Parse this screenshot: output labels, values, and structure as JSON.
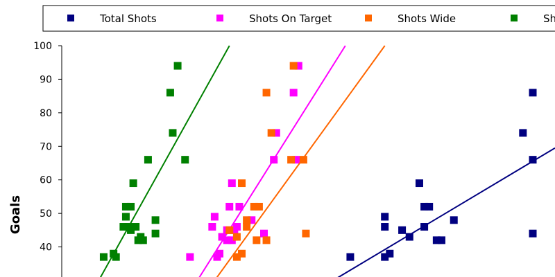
{
  "chart_data": {
    "type": "scatter",
    "ylabel": "Goals",
    "ylim": [
      30,
      100
    ],
    "yticks": [
      "40",
      "50",
      "60",
      "70",
      "80",
      "90",
      "100"
    ],
    "xlim": [
      0,
      200
    ],
    "legend_position": "top",
    "grid": false,
    "series": [
      {
        "name": "Total Shots",
        "color": "#000080",
        "points": [
          {
            "x": 117,
            "y": 37
          },
          {
            "x": 131,
            "y": 37
          },
          {
            "x": 133,
            "y": 38
          },
          {
            "x": 131,
            "y": 46
          },
          {
            "x": 131,
            "y": 49
          },
          {
            "x": 138,
            "y": 45
          },
          {
            "x": 141,
            "y": 43
          },
          {
            "x": 145,
            "y": 59
          },
          {
            "x": 147,
            "y": 52
          },
          {
            "x": 147,
            "y": 46
          },
          {
            "x": 149,
            "y": 52
          },
          {
            "x": 152,
            "y": 42
          },
          {
            "x": 154,
            "y": 42
          },
          {
            "x": 159,
            "y": 48
          },
          {
            "x": 187,
            "y": 74
          },
          {
            "x": 191,
            "y": 86
          },
          {
            "x": 191,
            "y": 66
          },
          {
            "x": 191,
            "y": 44
          }
        ],
        "trend": [
          {
            "x": 110,
            "y": 30
          },
          {
            "x": 200,
            "y": 69.5
          }
        ]
      },
      {
        "name": "Shots On Target",
        "color": "#ff00ff",
        "points": [
          {
            "x": 52,
            "y": 37
          },
          {
            "x": 61,
            "y": 46
          },
          {
            "x": 62,
            "y": 49
          },
          {
            "x": 63,
            "y": 37
          },
          {
            "x": 64,
            "y": 38
          },
          {
            "x": 65,
            "y": 43
          },
          {
            "x": 67,
            "y": 45
          },
          {
            "x": 67,
            "y": 42
          },
          {
            "x": 68,
            "y": 52
          },
          {
            "x": 69,
            "y": 42
          },
          {
            "x": 69,
            "y": 59
          },
          {
            "x": 70,
            "y": 45
          },
          {
            "x": 71,
            "y": 46
          },
          {
            "x": 72,
            "y": 52
          },
          {
            "x": 77,
            "y": 48
          },
          {
            "x": 82,
            "y": 44
          },
          {
            "x": 86,
            "y": 66
          },
          {
            "x": 87,
            "y": 74
          },
          {
            "x": 94,
            "y": 86
          },
          {
            "x": 96,
            "y": 94
          },
          {
            "x": 95,
            "y": 66
          }
        ],
        "trend": [
          {
            "x": 55,
            "y": 30
          },
          {
            "x": 115,
            "y": 100
          }
        ]
      },
      {
        "name": "Shots Wide",
        "color": "#ff6600",
        "points": [
          {
            "x": 71,
            "y": 37
          },
          {
            "x": 73,
            "y": 38
          },
          {
            "x": 68,
            "y": 45
          },
          {
            "x": 71,
            "y": 43
          },
          {
            "x": 73,
            "y": 59
          },
          {
            "x": 75,
            "y": 48
          },
          {
            "x": 75,
            "y": 46
          },
          {
            "x": 78,
            "y": 52
          },
          {
            "x": 79,
            "y": 42
          },
          {
            "x": 80,
            "y": 52
          },
          {
            "x": 83,
            "y": 42
          },
          {
            "x": 83,
            "y": 86
          },
          {
            "x": 85,
            "y": 74
          },
          {
            "x": 93,
            "y": 66
          },
          {
            "x": 94,
            "y": 94
          },
          {
            "x": 98,
            "y": 66
          },
          {
            "x": 99,
            "y": 44
          }
        ],
        "trend": [
          {
            "x": 62,
            "y": 30
          },
          {
            "x": 131,
            "y": 100
          }
        ]
      },
      {
        "name": "Shots Wide",
        "color": "#008000",
        "points": [
          {
            "x": 17,
            "y": 37
          },
          {
            "x": 21,
            "y": 38
          },
          {
            "x": 22,
            "y": 37
          },
          {
            "x": 25,
            "y": 46
          },
          {
            "x": 26,
            "y": 49
          },
          {
            "x": 26,
            "y": 52
          },
          {
            "x": 27,
            "y": 46
          },
          {
            "x": 28,
            "y": 52
          },
          {
            "x": 28,
            "y": 45
          },
          {
            "x": 29,
            "y": 59
          },
          {
            "x": 30,
            "y": 46
          },
          {
            "x": 31,
            "y": 42
          },
          {
            "x": 32,
            "y": 43
          },
          {
            "x": 33,
            "y": 42
          },
          {
            "x": 35,
            "y": 66
          },
          {
            "x": 38,
            "y": 48
          },
          {
            "x": 38,
            "y": 44
          },
          {
            "x": 44,
            "y": 86
          },
          {
            "x": 45,
            "y": 74
          },
          {
            "x": 47,
            "y": 94
          },
          {
            "x": 50,
            "y": 66
          }
        ],
        "trend": [
          {
            "x": 15,
            "y": 30
          },
          {
            "x": 68,
            "y": 100
          }
        ]
      }
    ]
  }
}
